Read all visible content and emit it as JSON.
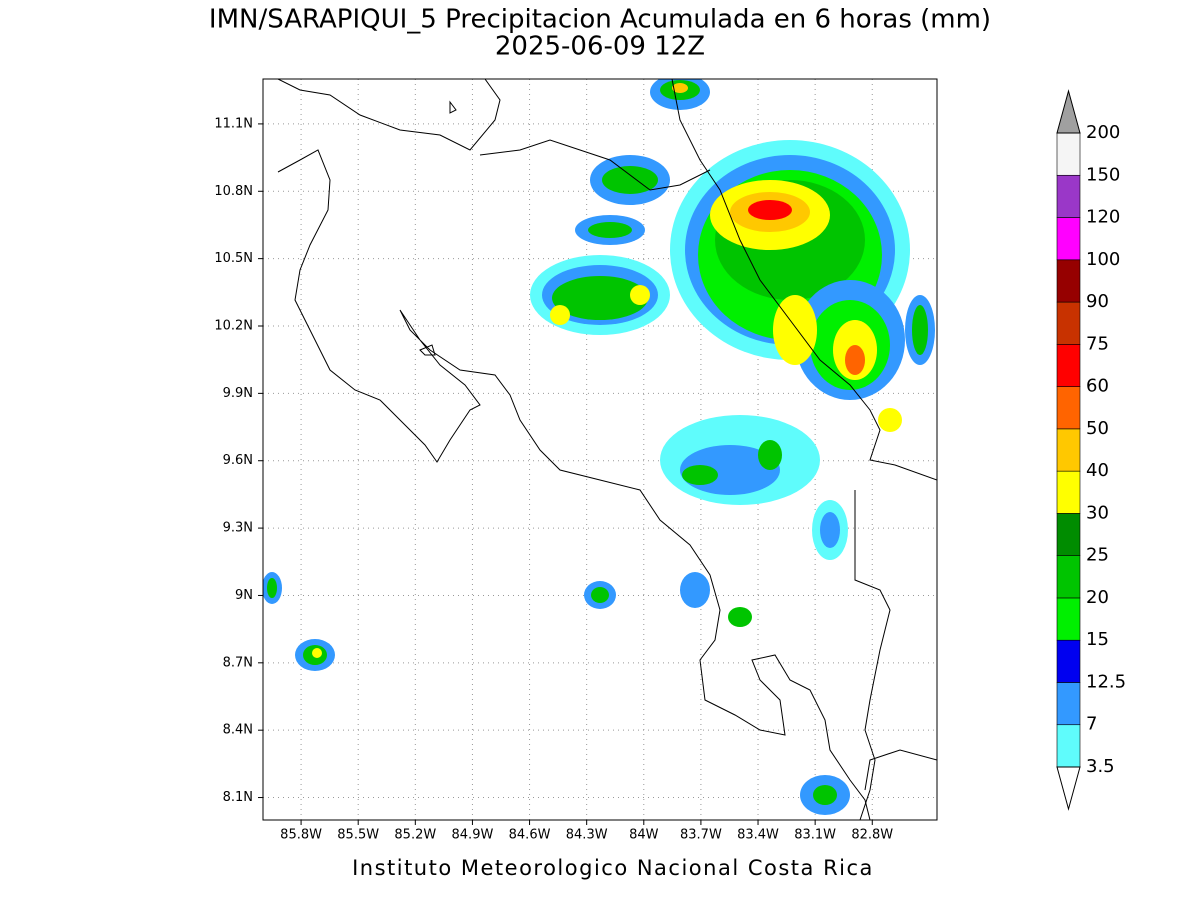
{
  "title": "IMN/SARAPIQUI_5 Precipitacion Acumulada en 6 horas (mm)",
  "subtitle": "2025-06-09 12Z",
  "footer": "Instituto Meteorologico Nacional Costa Rica",
  "map": {
    "xlim": [
      -86,
      -82.46
    ],
    "ylim": [
      8,
      11.3
    ],
    "grid": true,
    "xticks": [
      {
        "value": -85.8,
        "label": "85.8W"
      },
      {
        "value": -85.5,
        "label": "85.5W"
      },
      {
        "value": -85.2,
        "label": "85.2W"
      },
      {
        "value": -84.9,
        "label": "84.9W"
      },
      {
        "value": -84.6,
        "label": "84.6W"
      },
      {
        "value": -84.3,
        "label": "84.3W"
      },
      {
        "value": -84,
        "label": "84W"
      },
      {
        "value": -83.7,
        "label": "83.7W"
      },
      {
        "value": -83.4,
        "label": "83.4W"
      },
      {
        "value": -83.1,
        "label": "83.1W"
      },
      {
        "value": -82.8,
        "label": "82.8W"
      }
    ],
    "yticks": [
      {
        "value": 8.1,
        "label": "8.1N"
      },
      {
        "value": 8.4,
        "label": "8.4N"
      },
      {
        "value": 8.7,
        "label": "8.7N"
      },
      {
        "value": 9,
        "label": "9N"
      },
      {
        "value": 9.3,
        "label": "9.3N"
      },
      {
        "value": 9.6,
        "label": "9.6N"
      },
      {
        "value": 9.9,
        "label": "9.9N"
      },
      {
        "value": 10.2,
        "label": "10.2N"
      },
      {
        "value": 10.5,
        "label": "10.5N"
      },
      {
        "value": 10.8,
        "label": "10.8N"
      },
      {
        "value": 11.1,
        "label": "11.1N"
      }
    ]
  },
  "colorbar": {
    "levels": [
      3.5,
      7,
      12.5,
      15,
      20,
      25,
      30,
      40,
      50,
      60,
      75,
      90,
      100,
      120,
      150,
      200
    ],
    "colors": [
      "#5ffcfc",
      "#3399ff",
      "#0000f0",
      "#00f000",
      "#00c400",
      "#008c00",
      "#ffff00",
      "#ffc800",
      "#ff6400",
      "#ff0000",
      "#c83200",
      "#960000",
      "#ff00ff",
      "#9a37c8",
      "#f5f5f5"
    ],
    "under_color": "#ffffff",
    "over_color": "#a0a0a0"
  }
}
